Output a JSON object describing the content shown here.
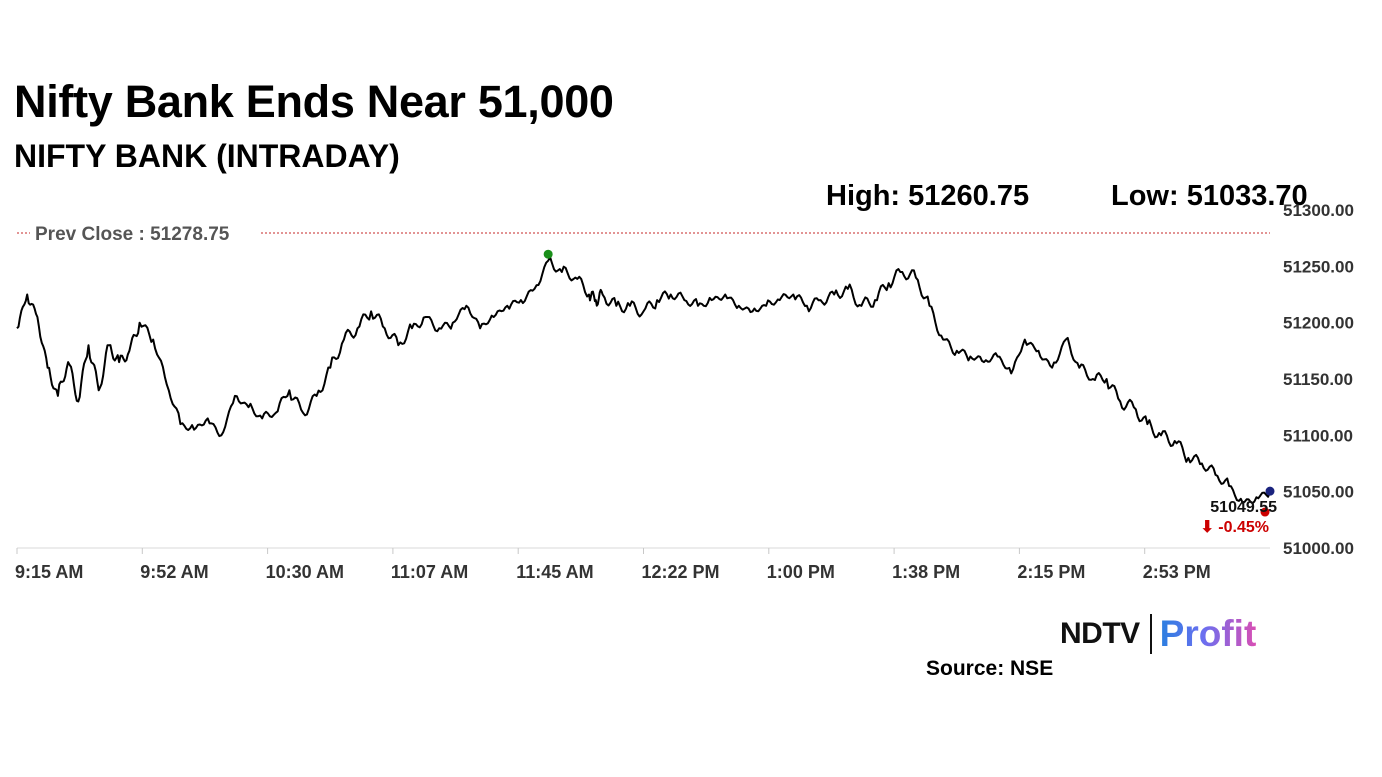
{
  "header": {
    "title": "Nifty Bank Ends Near 51,000",
    "subtitle": "NIFTY BANK (INTRADAY)",
    "high_text": "High: 51260.75",
    "low_text": "Low: 51033.70"
  },
  "footer": {
    "source": "Source: NSE",
    "logo_left": "NDTV",
    "logo_right": "Profit"
  },
  "colors": {
    "line": "#000000",
    "prev_close_line": "#c62828",
    "high_marker": "#1a8f1a",
    "low_marker": "#cc0000",
    "last_marker": "#1a237e",
    "change_text": "#cc0000"
  },
  "chart_data": {
    "type": "line",
    "title": "NIFTY BANK (INTRADAY)",
    "xlabel": "",
    "ylabel": "",
    "ylim": [
      51000,
      51300
    ],
    "yticks": [
      51000,
      51050,
      51100,
      51150,
      51200,
      51250,
      51300
    ],
    "ytick_labels": [
      "51000.00",
      "51050.00",
      "51100.00",
      "51150.00",
      "51200.00",
      "51250.00",
      "51300.00"
    ],
    "xticks": [
      "9:15 AM",
      "9:52 AM",
      "10:30 AM",
      "11:07 AM",
      "11:45 AM",
      "12:22 PM",
      "1:00 PM",
      "1:38 PM",
      "2:15 PM",
      "2:53 PM"
    ],
    "grid": false,
    "prev_close": 51278.75,
    "prev_close_label": "Prev Close : 51278.75",
    "high": 51260.75,
    "low": 51033.7,
    "last": 51049.55,
    "last_label": "51049.55",
    "change_label": "⬇ -0.45%",
    "x_minutes_from_open": [
      0,
      3,
      6,
      9,
      12,
      15,
      18,
      21,
      24,
      27,
      30,
      33,
      36,
      40,
      44,
      48,
      52,
      56,
      60,
      64,
      68,
      72,
      76,
      80,
      84,
      88,
      92,
      96,
      100,
      104,
      108,
      112,
      116,
      120,
      124,
      128,
      132,
      136,
      140,
      144,
      148,
      152,
      156,
      160,
      164,
      168,
      170,
      172,
      176,
      180,
      184,
      188,
      192,
      196,
      200,
      204,
      208,
      212,
      216,
      220,
      224,
      228,
      232,
      236,
      240,
      244,
      248,
      252,
      256,
      260,
      264,
      268,
      272,
      276,
      280,
      284,
      288,
      292,
      296,
      300,
      304,
      308,
      312,
      316,
      320,
      324,
      328,
      332,
      336,
      340,
      344,
      348,
      352,
      356,
      360,
      364,
      368
    ],
    "values": [
      51195,
      51225,
      51205,
      51160,
      51135,
      51165,
      51130,
      51180,
      51140,
      51180,
      51165,
      51175,
      51200,
      51185,
      51145,
      51110,
      51105,
      51115,
      51100,
      51135,
      51125,
      51115,
      51120,
      51140,
      51120,
      51135,
      51160,
      51185,
      51195,
      51210,
      51195,
      51180,
      51195,
      51205,
      51195,
      51200,
      51215,
      51195,
      51205,
      51215,
      51220,
      51230,
      51255,
      51245,
      51240,
      51225,
      51220,
      51225,
      51215,
      51215,
      51210,
      51220,
      51225,
      51220,
      51215,
      51220,
      51225,
      51215,
      51210,
      51215,
      51220,
      51225,
      51215,
      51220,
      51225,
      51230,
      51215,
      51220,
      51235,
      51245,
      51240,
      51215,
      51185,
      51175,
      51170,
      51165,
      51170,
      51155,
      51185,
      51175,
      51160,
      51185,
      51160,
      51150,
      51150,
      51130,
      51125,
      51110,
      51100,
      51095,
      51080,
      51075,
      51065,
      51055,
      51040,
      51045,
      51050
    ]
  }
}
